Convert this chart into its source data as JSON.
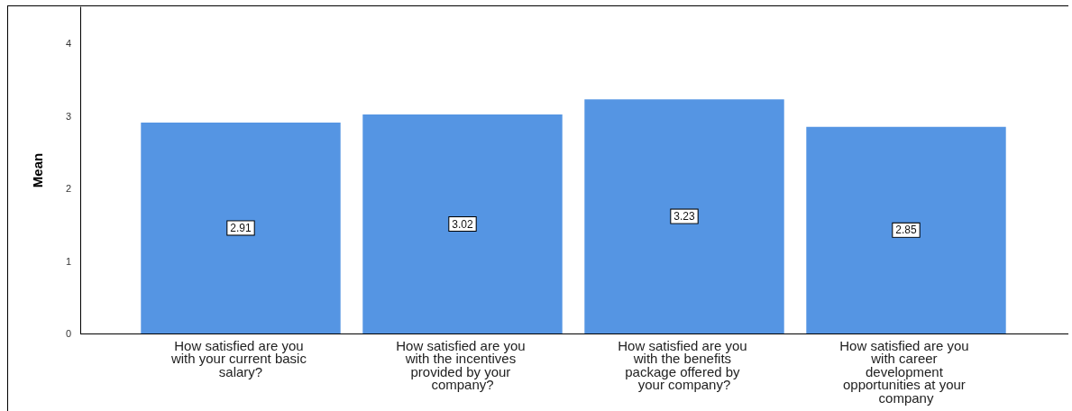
{
  "chart_data": {
    "type": "bar",
    "ylabel": "Mean",
    "categories": [
      "How satisfied are you with your current basic salary?",
      "How satisfied are you with the incentives provided by your company?",
      "How satisfied are you with the benefits package offered by your company?",
      "How satisfied are you with career development opportunities at your company"
    ],
    "values": [
      2.91,
      3.02,
      3.23,
      2.85
    ],
    "color": "#5595e3",
    "ylim": [
      0,
      4.5
    ],
    "yticks": [
      0,
      1,
      2,
      3,
      4
    ],
    "grid": false,
    "data_labels": true
  }
}
